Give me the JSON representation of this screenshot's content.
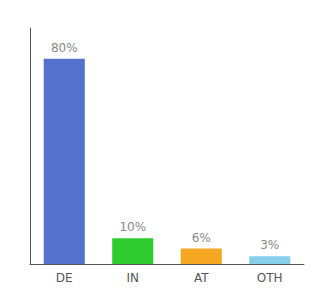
{
  "chart_data": {
    "type": "bar",
    "categories": [
      "DE",
      "IN",
      "AT",
      "OTH"
    ],
    "values": [
      80,
      10,
      6,
      3
    ],
    "value_labels": [
      "80%",
      "10%",
      "6%",
      "3%"
    ],
    "colors": [
      "#5472cc",
      "#2ecc2e",
      "#f5a623",
      "#87ceeb"
    ],
    "ylim": [
      0,
      92
    ],
    "grid": false,
    "data_labels": true,
    "tick_labels": "x"
  }
}
